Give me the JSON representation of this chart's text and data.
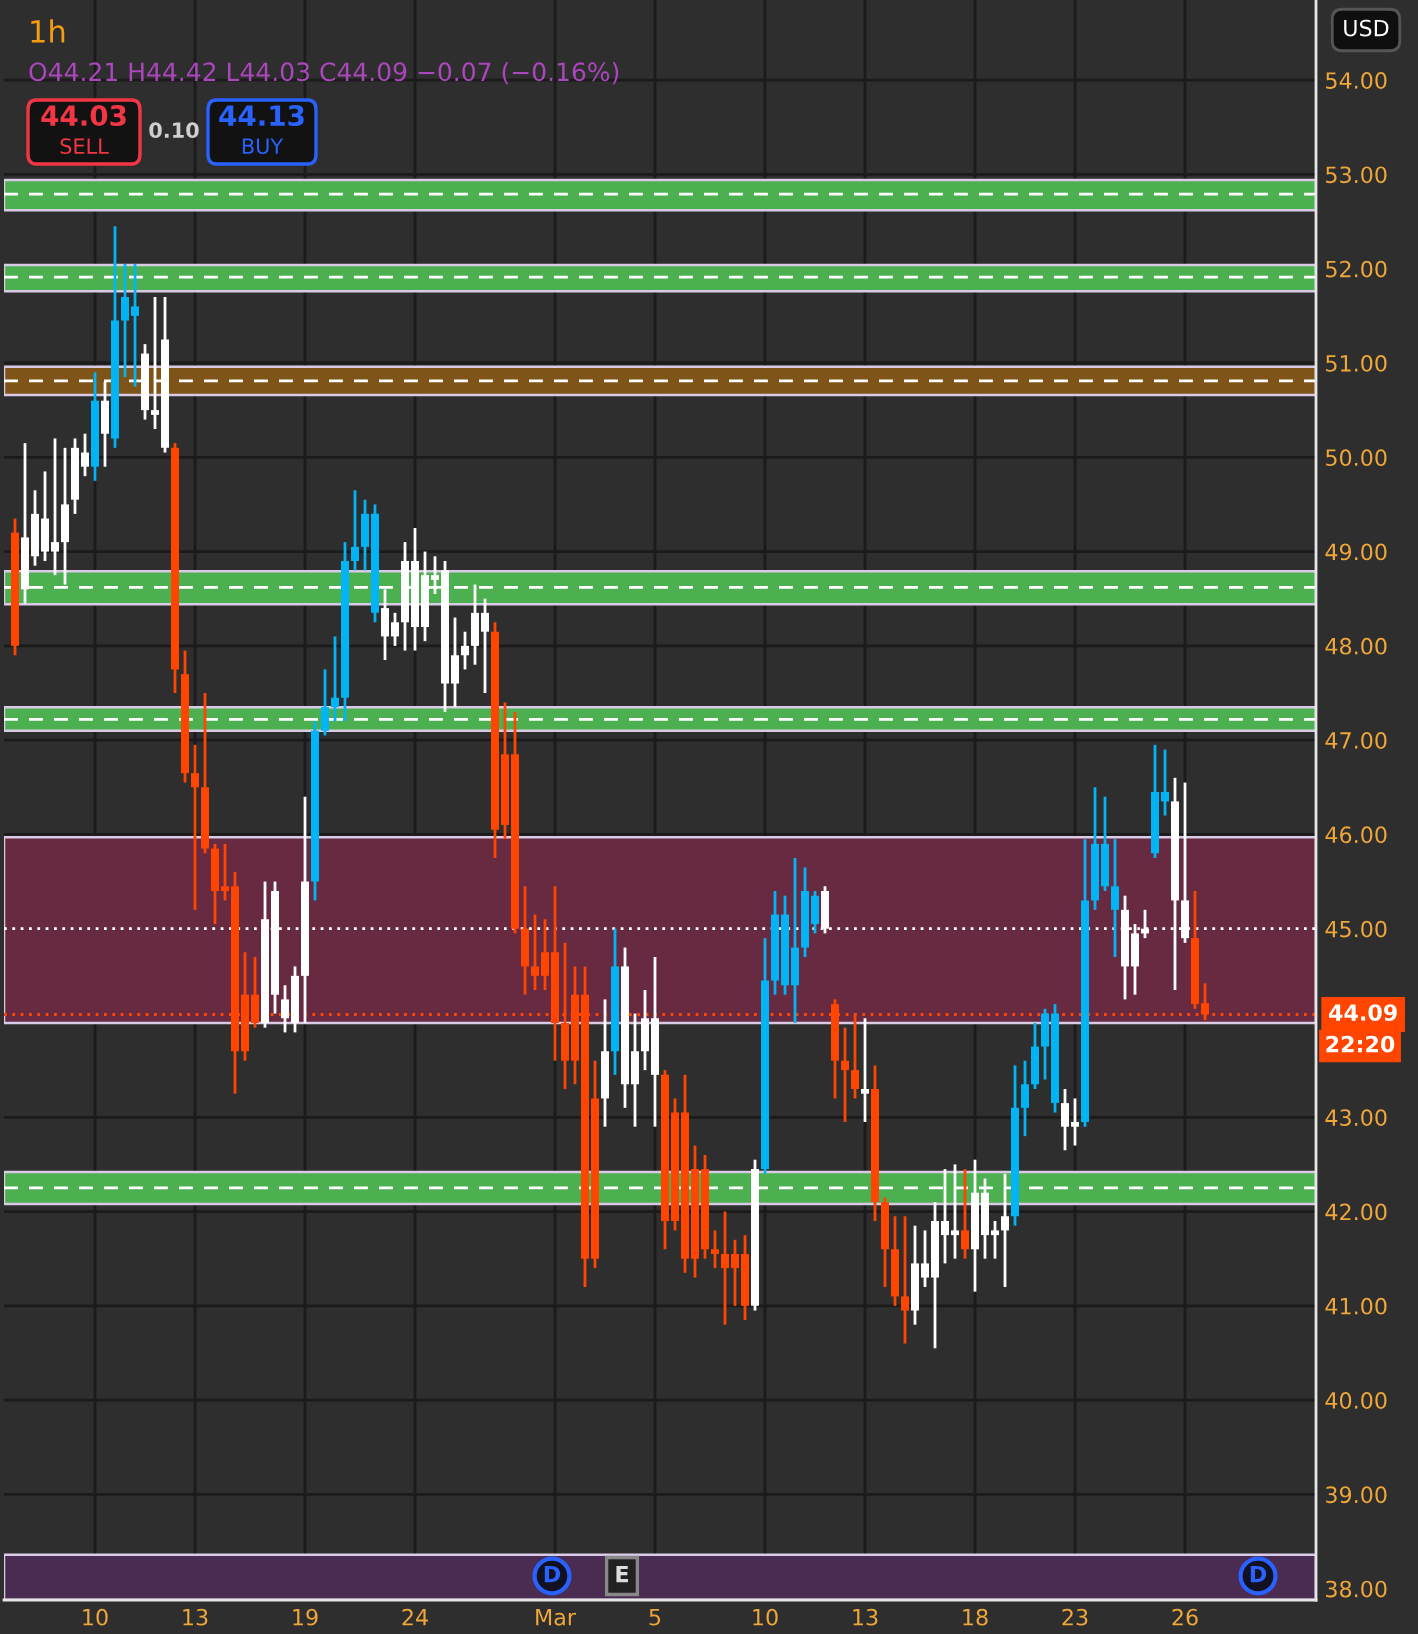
{
  "chart_data": {
    "type": "candlestick",
    "title": "1h",
    "subtitle": "O44.21 H44.42 L44.03 C44.09 −0.07 (−0.16%)",
    "categories": [
      null,
      null,
      null,
      null,
      null,
      null,
      null,
      null,
      "10",
      null,
      null,
      null,
      null,
      null,
      null,
      null,
      null,
      null,
      "13",
      null,
      null,
      null,
      null,
      null,
      null,
      null,
      null,
      null,
      null,
      "19",
      null,
      null,
      null,
      null,
      null,
      null,
      null,
      null,
      null,
      null,
      "24",
      null,
      null,
      null,
      null,
      null,
      null,
      null,
      null,
      null,
      null,
      null,
      null,
      null,
      "Mar",
      null,
      null,
      null,
      null,
      null,
      null,
      null,
      null,
      null,
      "5",
      null,
      null,
      null,
      null,
      null,
      null,
      null,
      null,
      null,
      null,
      "10",
      null,
      null,
      null,
      null,
      null,
      null,
      null,
      null,
      null,
      "13",
      null,
      null,
      null,
      null,
      null,
      null,
      null,
      null,
      null,
      null,
      "18",
      null,
      null,
      null,
      null,
      null,
      null,
      null,
      null,
      null,
      "23",
      null,
      null,
      null,
      null,
      null,
      null,
      null,
      null,
      null,
      null,
      "26",
      null,
      null
    ],
    "ohlc": [
      [
        49.2,
        49.35,
        47.9,
        48.0
      ],
      [
        48.6,
        50.15,
        48.45,
        49.15
      ],
      [
        48.95,
        49.65,
        48.85,
        49.4
      ],
      [
        49.0,
        49.85,
        48.9,
        49.35
      ],
      [
        49.0,
        50.2,
        48.75,
        49.1
      ],
      [
        49.1,
        50.1,
        48.65,
        49.5
      ],
      [
        49.55,
        50.2,
        49.4,
        50.1
      ],
      [
        49.9,
        50.25,
        49.8,
        50.05
      ],
      [
        49.9,
        50.9,
        49.75,
        50.6
      ],
      [
        50.25,
        50.8,
        49.9,
        50.6
      ],
      [
        50.2,
        52.45,
        50.1,
        51.45
      ],
      [
        51.45,
        52.05,
        50.85,
        51.7
      ],
      [
        51.5,
        52.05,
        50.75,
        51.6
      ],
      [
        50.5,
        51.2,
        50.4,
        51.1
      ],
      [
        50.45,
        51.7,
        50.3,
        50.5
      ],
      [
        50.1,
        51.7,
        50.05,
        51.25
      ],
      [
        50.1,
        50.15,
        47.5,
        47.75
      ],
      [
        47.7,
        47.95,
        46.55,
        46.65
      ],
      [
        46.65,
        46.95,
        45.2,
        46.5
      ],
      [
        46.5,
        47.5,
        45.8,
        45.85
      ],
      [
        45.85,
        45.9,
        45.05,
        45.4
      ],
      [
        45.45,
        45.9,
        45.3,
        45.4
      ],
      [
        45.45,
        45.6,
        43.25,
        43.7
      ],
      [
        44.3,
        44.75,
        43.6,
        43.7
      ],
      [
        44.3,
        44.7,
        43.95,
        44.0
      ],
      [
        44.0,
        45.5,
        43.95,
        45.1
      ],
      [
        44.3,
        45.5,
        44.1,
        45.4
      ],
      [
        44.05,
        44.4,
        43.9,
        44.25
      ],
      [
        44.0,
        44.6,
        43.9,
        44.5
      ],
      [
        44.5,
        46.4,
        44.0,
        45.5
      ],
      [
        45.5,
        47.2,
        45.3,
        47.1
      ],
      [
        47.1,
        47.75,
        47.05,
        47.35
      ],
      [
        47.35,
        48.1,
        47.2,
        47.45
      ],
      [
        47.45,
        49.1,
        47.2,
        48.9
      ],
      [
        48.9,
        49.65,
        48.8,
        49.05
      ],
      [
        49.05,
        49.55,
        48.8,
        49.4
      ],
      [
        48.35,
        49.5,
        48.25,
        49.4
      ],
      [
        48.1,
        48.6,
        47.85,
        48.4
      ],
      [
        48.1,
        48.35,
        48.0,
        48.25
      ],
      [
        48.25,
        49.1,
        47.95,
        48.9
      ],
      [
        48.2,
        49.25,
        47.95,
        48.9
      ],
      [
        48.2,
        49.0,
        48.05,
        48.75
      ],
      [
        48.7,
        48.95,
        48.55,
        48.75
      ],
      [
        47.6,
        48.9,
        47.3,
        48.8
      ],
      [
        47.6,
        48.3,
        47.35,
        47.9
      ],
      [
        47.9,
        48.15,
        47.75,
        48.0
      ],
      [
        48.0,
        48.65,
        47.8,
        48.35
      ],
      [
        48.15,
        48.5,
        47.5,
        48.35
      ],
      [
        48.15,
        48.25,
        45.75,
        46.05
      ],
      [
        46.85,
        47.4,
        45.95,
        46.1
      ],
      [
        46.85,
        47.3,
        44.95,
        45.0
      ],
      [
        45.0,
        45.45,
        44.3,
        44.6
      ],
      [
        44.6,
        45.15,
        44.35,
        44.5
      ],
      [
        44.75,
        45.1,
        44.35,
        44.5
      ],
      [
        44.75,
        45.45,
        43.6,
        44.0
      ],
      [
        44.0,
        44.85,
        43.3,
        43.6
      ],
      [
        44.3,
        44.6,
        43.35,
        43.6
      ],
      [
        44.3,
        44.6,
        41.2,
        41.5
      ],
      [
        43.2,
        43.6,
        41.4,
        41.5
      ],
      [
        43.2,
        44.25,
        42.9,
        43.7
      ],
      [
        43.7,
        45.0,
        43.45,
        44.6
      ],
      [
        43.35,
        44.8,
        43.1,
        44.6
      ],
      [
        43.35,
        44.1,
        42.9,
        43.7
      ],
      [
        43.7,
        44.35,
        43.5,
        44.05
      ],
      [
        43.45,
        44.7,
        42.9,
        44.05
      ],
      [
        43.45,
        43.5,
        41.6,
        41.9
      ],
      [
        43.05,
        43.2,
        41.8,
        41.9
      ],
      [
        43.05,
        43.45,
        41.35,
        41.5
      ],
      [
        42.45,
        42.7,
        41.3,
        41.5
      ],
      [
        42.45,
        42.6,
        41.5,
        41.6
      ],
      [
        41.6,
        41.8,
        41.4,
        41.55
      ],
      [
        41.55,
        42.0,
        40.8,
        41.4
      ],
      [
        41.55,
        41.7,
        41.0,
        41.4
      ],
      [
        41.55,
        41.75,
        40.85,
        41.0
      ],
      [
        41.0,
        42.55,
        40.95,
        42.45
      ],
      [
        42.45,
        44.9,
        42.4,
        44.45
      ],
      [
        44.45,
        45.4,
        44.3,
        45.15
      ],
      [
        44.4,
        45.35,
        44.3,
        45.15
      ],
      [
        44.4,
        45.75,
        44.0,
        44.8
      ],
      [
        44.8,
        45.65,
        44.7,
        45.4
      ],
      [
        45.05,
        45.4,
        44.95,
        45.35
      ],
      [
        45.0,
        45.45,
        44.95,
        45.4
      ],
      [
        44.2,
        44.25,
        43.2,
        43.6
      ],
      [
        43.6,
        43.95,
        42.95,
        43.5
      ],
      [
        43.5,
        44.1,
        43.2,
        43.3
      ],
      [
        43.25,
        44.05,
        42.95,
        43.3
      ],
      [
        43.3,
        43.55,
        41.9,
        42.1
      ],
      [
        42.1,
        42.15,
        41.2,
        41.6
      ],
      [
        41.6,
        41.95,
        41.0,
        41.1
      ],
      [
        41.1,
        41.95,
        40.6,
        40.95
      ],
      [
        40.95,
        41.85,
        40.8,
        41.45
      ],
      [
        41.3,
        41.8,
        41.2,
        41.45
      ],
      [
        41.3,
        42.1,
        40.55,
        41.9
      ],
      [
        41.75,
        42.45,
        41.45,
        41.9
      ],
      [
        41.75,
        42.5,
        41.5,
        41.8
      ],
      [
        41.8,
        42.45,
        41.5,
        41.6
      ],
      [
        41.6,
        42.55,
        41.15,
        42.2
      ],
      [
        41.75,
        42.35,
        41.5,
        42.2
      ],
      [
        41.75,
        41.9,
        41.5,
        41.8
      ],
      [
        41.8,
        42.4,
        41.2,
        41.95
      ],
      [
        41.95,
        43.55,
        41.85,
        43.1
      ],
      [
        43.1,
        43.6,
        42.8,
        43.35
      ],
      [
        43.35,
        44.0,
        43.3,
        43.75
      ],
      [
        43.75,
        44.15,
        43.4,
        44.1
      ],
      [
        43.15,
        44.2,
        43.05,
        44.1
      ],
      [
        42.9,
        43.3,
        42.65,
        43.15
      ],
      [
        42.9,
        43.2,
        42.7,
        42.95
      ],
      [
        42.95,
        45.95,
        42.9,
        45.3
      ],
      [
        45.3,
        46.5,
        45.2,
        45.9
      ],
      [
        45.45,
        46.4,
        45.4,
        45.9
      ],
      [
        45.2,
        45.95,
        44.7,
        45.45
      ],
      [
        44.6,
        45.35,
        44.25,
        45.2
      ],
      [
        44.6,
        45.05,
        44.3,
        44.95
      ],
      [
        44.95,
        45.2,
        44.9,
        45.0
      ],
      [
        45.8,
        46.95,
        45.75,
        46.45
      ],
      [
        46.35,
        46.9,
        46.2,
        46.45
      ],
      [
        45.3,
        46.6,
        44.35,
        46.35
      ],
      [
        44.9,
        46.55,
        44.85,
        45.3
      ],
      [
        44.9,
        45.4,
        44.15,
        44.2
      ],
      [
        44.21,
        44.42,
        44.03,
        44.09
      ]
    ],
    "colors": [
      "#ff4500",
      "#ffffff",
      "#ffffff",
      "#ffffff",
      "#ffffff",
      "#ffffff",
      "#ffffff",
      "#ffffff",
      "#00b4f5",
      "#ffffff",
      "#00b4f5",
      "#00b4f5",
      "#00b4f5",
      "#ffffff",
      "#ffffff",
      "#ffffff",
      "#ff4500",
      "#ff4500",
      "#ff4500",
      "#ff4500",
      "#ff4500",
      "#ff4500",
      "#ff4500",
      "#ff4500",
      "#ff4500",
      "#ffffff",
      "#ffffff",
      "#ffffff",
      "#ffffff",
      "#ffffff",
      "#00b4f5",
      "#00b4f5",
      "#00b4f5",
      "#00b4f5",
      "#00b4f5",
      "#00b4f5",
      "#00b4f5",
      "#ffffff",
      "#ffffff",
      "#ffffff",
      "#ffffff",
      "#ffffff",
      "#ffffff",
      "#ffffff",
      "#ffffff",
      "#ffffff",
      "#ffffff",
      "#ffffff",
      "#ff4500",
      "#ff4500",
      "#ff4500",
      "#ff4500",
      "#ff4500",
      "#ff4500",
      "#ff4500",
      "#ff4500",
      "#ff4500",
      "#ff4500",
      "#ff4500",
      "#ffffff",
      "#00b4f5",
      "#ffffff",
      "#ffffff",
      "#ffffff",
      "#ffffff",
      "#ff4500",
      "#ff4500",
      "#ff4500",
      "#ff4500",
      "#ff4500",
      "#ff4500",
      "#ff4500",
      "#ff4500",
      "#ff4500",
      "#ffffff",
      "#00b4f5",
      "#00b4f5",
      "#00b4f5",
      "#00b4f5",
      "#00b4f5",
      "#00b4f5",
      "#ffffff",
      "#ff4500",
      "#ff4500",
      "#ff4500",
      "#ffffff",
      "#ff4500",
      "#ff4500",
      "#ff4500",
      "#ff4500",
      "#ffffff",
      "#ffffff",
      "#ffffff",
      "#ffffff",
      "#ffffff",
      "#ff4500",
      "#ffffff",
      "#ffffff",
      "#ffffff",
      "#ffffff",
      "#00b4f5",
      "#00b4f5",
      "#00b4f5",
      "#00b4f5",
      "#00b4f5",
      "#ffffff",
      "#ffffff",
      "#00b4f5",
      "#00b4f5",
      "#00b4f5",
      "#00b4f5",
      "#ffffff",
      "#ffffff",
      "#ffffff",
      "#00b4f5",
      "#00b4f5",
      "#ffffff",
      "#ffffff",
      "#ff4500",
      "#ff4500"
    ],
    "ylim": [
      37.88,
      54.85
    ],
    "yticks": [
      {
        "value": 38,
        "label": "38.00"
      },
      {
        "value": 39,
        "label": "39.00"
      },
      {
        "value": 40,
        "label": "40.00"
      },
      {
        "value": 41,
        "label": "41.00"
      },
      {
        "value": 42,
        "label": "42.00"
      },
      {
        "value": 43,
        "label": "43.00"
      },
      {
        "value": 45,
        "label": "45.00"
      },
      {
        "value": 46,
        "label": "46.00"
      },
      {
        "value": 47,
        "label": "47.00"
      },
      {
        "value": 48,
        "label": "48.00"
      },
      {
        "value": 49,
        "label": "49.00"
      },
      {
        "value": 50,
        "label": "50.00"
      },
      {
        "value": 51,
        "label": "51.00"
      },
      {
        "value": 52,
        "label": "52.00"
      },
      {
        "value": 53,
        "label": "53.00"
      },
      {
        "value": 54,
        "label": "54.00"
      }
    ],
    "grid": true,
    "bands": [
      {
        "axis": "y",
        "from": 52.62,
        "to": 52.94,
        "color": "#4caf50"
      },
      {
        "axis": "y",
        "from": 51.76,
        "to": 52.04,
        "color": "#4caf50"
      },
      {
        "axis": "y",
        "from": 50.66,
        "to": 50.96,
        "color": "#7f5418"
      },
      {
        "axis": "y",
        "from": 48.44,
        "to": 48.79,
        "color": "#4caf50"
      },
      {
        "axis": "y",
        "from": 47.1,
        "to": 47.35,
        "color": "#4caf50"
      },
      {
        "axis": "y",
        "from": 44.0,
        "to": 45.97,
        "color": "#672a40"
      },
      {
        "axis": "y",
        "from": 42.08,
        "to": 42.42,
        "color": "#4caf50"
      },
      {
        "axis": "y",
        "from": 37.88,
        "to": 38.36,
        "color": "#4a2c52"
      }
    ],
    "ref_lines": [
      {
        "axis": "y",
        "value": 52.79,
        "color": "#ffffff",
        "line_style": "dashed"
      },
      {
        "axis": "y",
        "value": 51.91,
        "color": "#ffffff",
        "line_style": "dashed"
      },
      {
        "axis": "y",
        "value": 50.81,
        "color": "#ffffff",
        "line_style": "dashed"
      },
      {
        "axis": "y",
        "value": 48.62,
        "color": "#ffffff",
        "line_style": "dashed"
      },
      {
        "axis": "y",
        "value": 47.22,
        "color": "#ffffff",
        "line_style": "dashed"
      },
      {
        "axis": "y",
        "value": 45.0,
        "color": "#ffffff",
        "line_style": "dotted"
      },
      {
        "axis": "y",
        "value": 42.25,
        "color": "#ffffff",
        "line_style": "dashed"
      },
      {
        "axis": "y",
        "value": 44.09,
        "color": "#ff4500",
        "line_style": "dotted",
        "label": "44.09"
      }
    ],
    "annotations": [
      "44.03",
      "SELL",
      "0.10",
      "44.13",
      "BUY",
      "USD",
      "22:20",
      "D",
      "E",
      "D"
    ]
  }
}
